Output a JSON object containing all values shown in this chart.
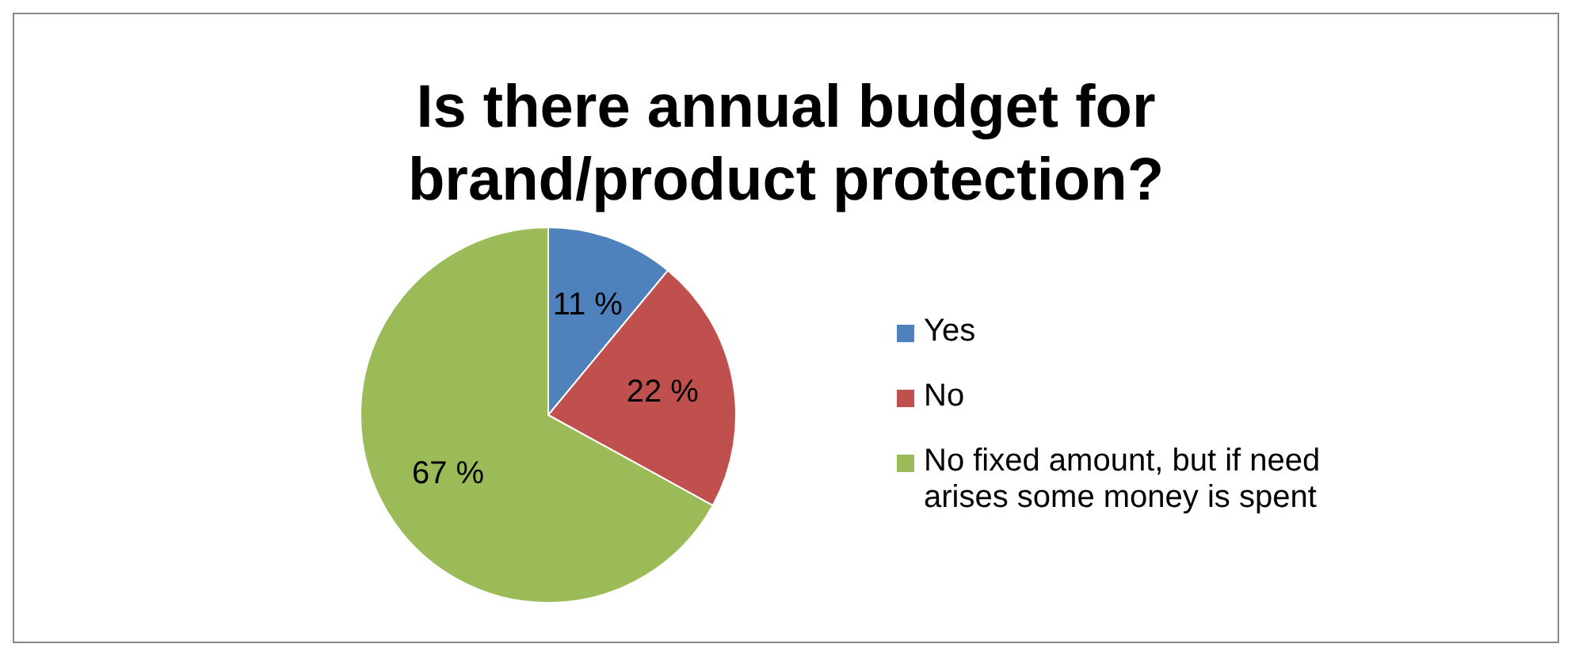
{
  "chart_data": {
    "type": "pie",
    "title": "Is there annual budget for brand/product protection?",
    "categories": [
      "Yes",
      "No",
      "No fixed amount, but if need arises some money is spent"
    ],
    "values": [
      11,
      22,
      67
    ],
    "value_labels": [
      "11 %",
      "22 %",
      "67 %"
    ],
    "colors": [
      "#4f81bd",
      "#c0504d",
      "#9bbb59"
    ],
    "legend": "right"
  }
}
